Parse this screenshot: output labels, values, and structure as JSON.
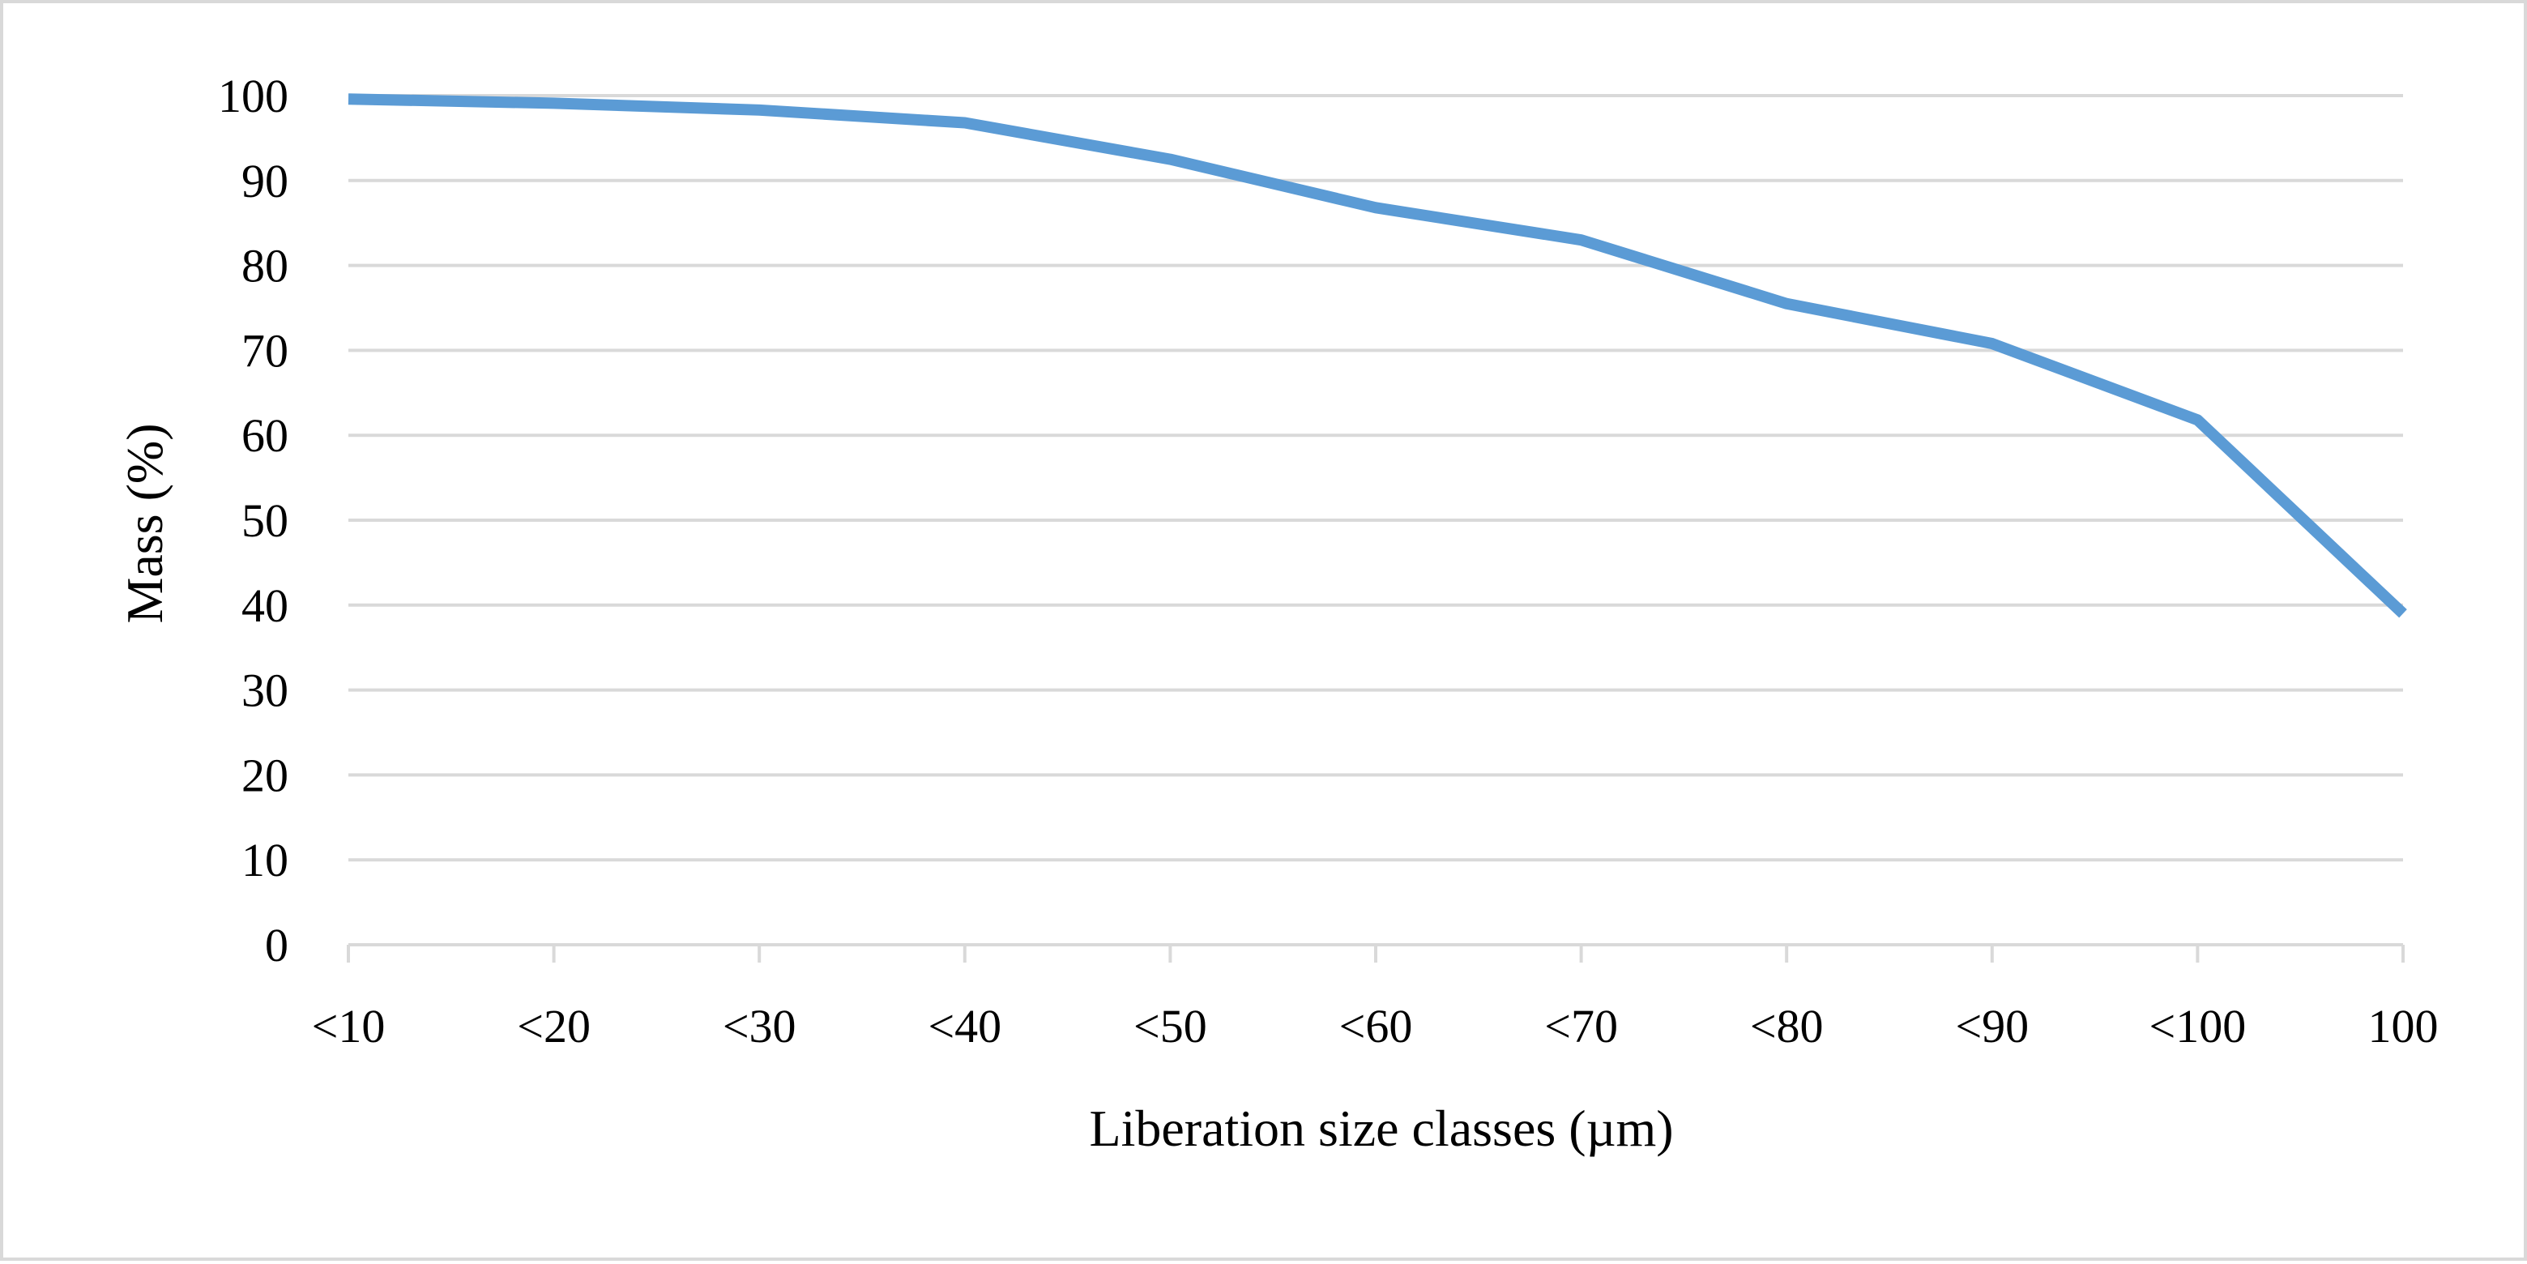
{
  "chart_data": {
    "type": "line",
    "title": "",
    "xlabel": "Liberation size classes (µm)",
    "ylabel": "Mass (%)",
    "categories": [
      "<10",
      "<20",
      "<30",
      "<40",
      "<50",
      "<60",
      "<70",
      "<80",
      "<90",
      "<100",
      "100"
    ],
    "series": [
      {
        "values": [
          99.6,
          99.1,
          98.3,
          96.8,
          92.5,
          86.8,
          83.0,
          75.5,
          70.8,
          61.8,
          39.0
        ]
      }
    ],
    "ylim": [
      0,
      100
    ],
    "yticks": [
      "0",
      "10",
      "20",
      "30",
      "40",
      "50",
      "60",
      "70",
      "80",
      "90",
      "100"
    ],
    "grid": true,
    "legend": "none",
    "colors": {
      "line": "#5b9bd5",
      "grid": "#d9d9d9",
      "frame": "#d9d9d9"
    }
  }
}
